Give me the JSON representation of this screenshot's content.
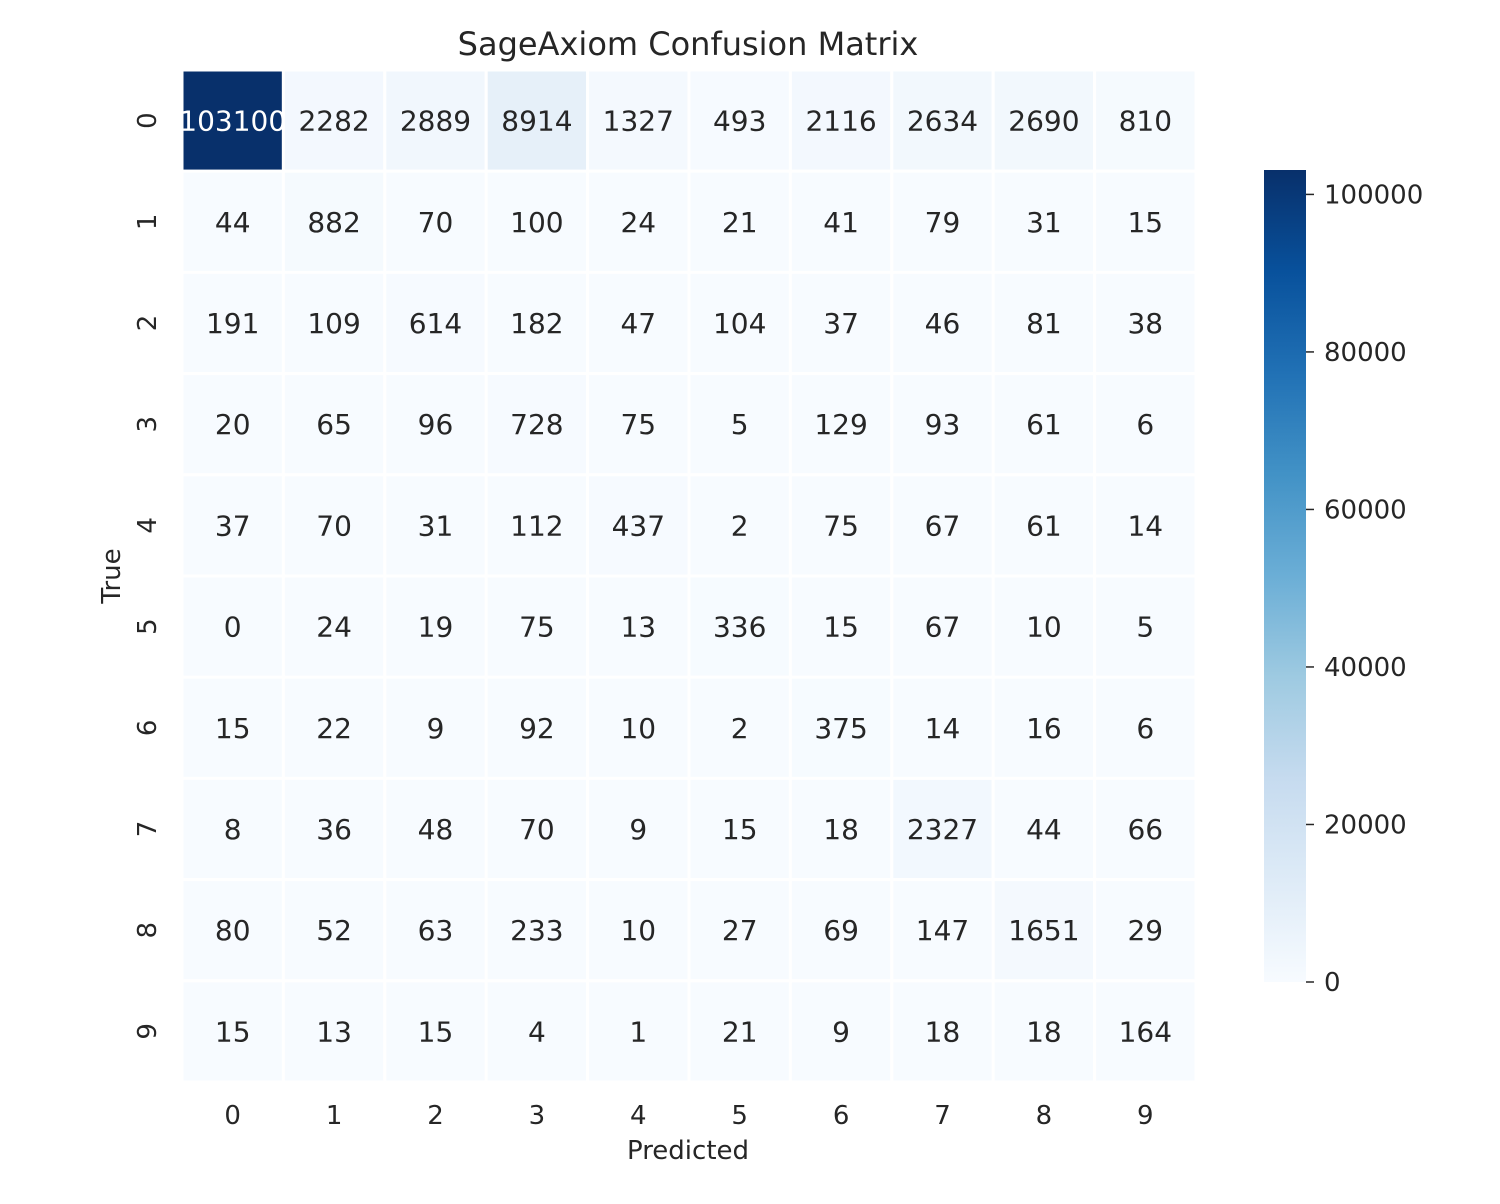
{
  "chart_data": {
    "type": "heatmap",
    "title": "SageAxiom Confusion Matrix",
    "xlabel": "Predicted",
    "ylabel": "True",
    "x_categories": [
      "0",
      "1",
      "2",
      "3",
      "4",
      "5",
      "6",
      "7",
      "8",
      "9"
    ],
    "y_categories": [
      "0",
      "1",
      "2",
      "3",
      "4",
      "5",
      "6",
      "7",
      "8",
      "9"
    ],
    "values": [
      [
        103100,
        2282,
        2889,
        8914,
        1327,
        493,
        2116,
        2634,
        2690,
        810
      ],
      [
        44,
        882,
        70,
        100,
        24,
        21,
        41,
        79,
        31,
        15
      ],
      [
        191,
        109,
        614,
        182,
        47,
        104,
        37,
        46,
        81,
        38
      ],
      [
        20,
        65,
        96,
        728,
        75,
        5,
        129,
        93,
        61,
        6
      ],
      [
        37,
        70,
        31,
        112,
        437,
        2,
        75,
        67,
        61,
        14
      ],
      [
        0,
        24,
        19,
        75,
        13,
        336,
        15,
        67,
        10,
        5
      ],
      [
        15,
        22,
        9,
        92,
        10,
        2,
        375,
        14,
        16,
        6
      ],
      [
        8,
        36,
        48,
        70,
        9,
        15,
        18,
        2327,
        44,
        66
      ],
      [
        80,
        52,
        63,
        233,
        10,
        27,
        69,
        147,
        1651,
        29
      ],
      [
        15,
        13,
        15,
        4,
        1,
        21,
        9,
        18,
        18,
        164
      ]
    ],
    "colormap": "Blues",
    "color_range": [
      0,
      103100
    ],
    "colorbar": {
      "ticks": [
        0,
        20000,
        40000,
        60000,
        80000,
        100000
      ],
      "tick_labels": [
        "0",
        "20000",
        "40000",
        "60000",
        "80000",
        "100000"
      ],
      "placement": "right"
    },
    "annotate": true,
    "grid": false
  },
  "colors": {
    "text_dark": "#262626",
    "text_light": "#ffffff",
    "cell_border": "#ffffff",
    "colormap_stops": [
      "#f7fbff",
      "#deebf7",
      "#c6dbef",
      "#9ecae1",
      "#6baed6",
      "#4292c6",
      "#2171b5",
      "#08519c",
      "#08306b"
    ]
  }
}
